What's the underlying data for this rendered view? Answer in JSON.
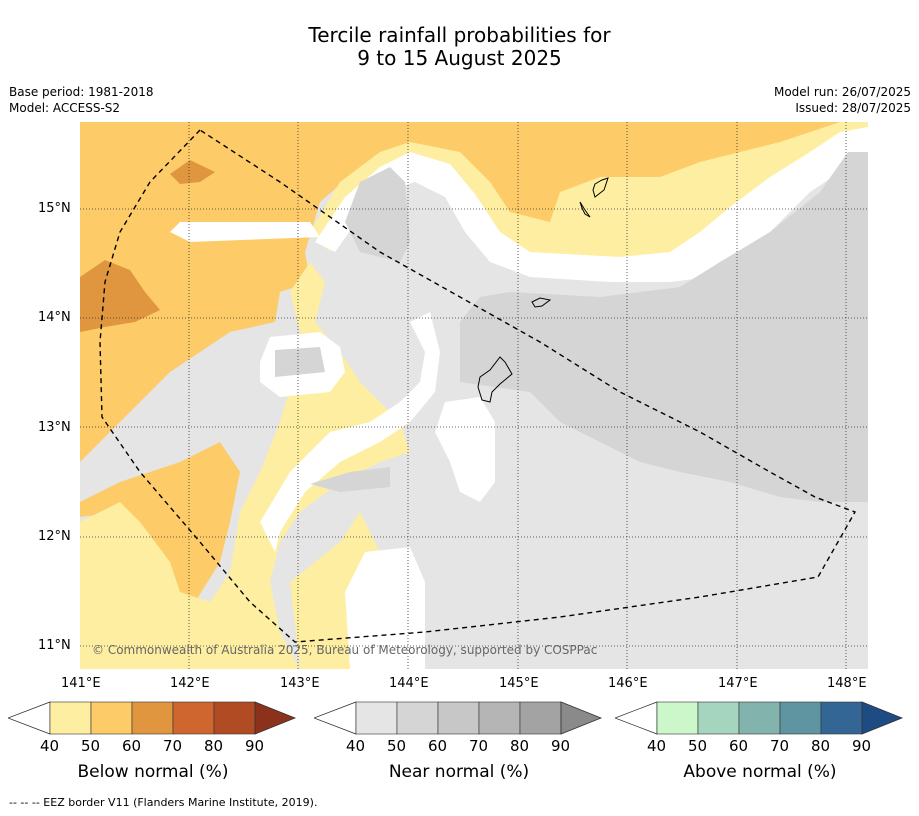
{
  "title": {
    "line1": "Tercile rainfall probabilities for",
    "line2": "9 to 15 August 2025"
  },
  "meta": {
    "base_period": "Base period: 1981-2018",
    "model": "Model: ACCESS-S2",
    "model_run": "Model run: 26/07/2025",
    "issued": "Issued: 28/07/2025"
  },
  "map": {
    "copyright": "© Commonwealth of Australia 2025, Bureau of Meteorology, supported by COSPPac",
    "lat_labels": [
      "15°N",
      "14°N",
      "13°N",
      "12°N",
      "11°N"
    ],
    "lon_labels": [
      "141°E",
      "142°E",
      "143°E",
      "144°E",
      "145°E",
      "146°E",
      "147°E",
      "148°E"
    ]
  },
  "colorbars": [
    {
      "title": "Below normal (%)",
      "ticks": [
        "40",
        "50",
        "60",
        "70",
        "80",
        "90"
      ],
      "colors": [
        "#fdeea1",
        "#fdcb67",
        "#e0963f",
        "#d0662f",
        "#b04b24",
        "#8c321c"
      ]
    },
    {
      "title": "Near normal (%)",
      "ticks": [
        "40",
        "50",
        "60",
        "70",
        "80",
        "90"
      ],
      "colors": [
        "#e5e5e5",
        "#d5d5d5",
        "#c7c7c7",
        "#b5b5b5",
        "#a3a3a3",
        "#8a8a8a"
      ]
    },
    {
      "title": "Above normal (%)",
      "ticks": [
        "40",
        "50",
        "60",
        "70",
        "80",
        "90"
      ],
      "colors": [
        "#cbf7cb",
        "#a5d5be",
        "#82b4ad",
        "#5e95a0",
        "#346695",
        "#1e4b82"
      ]
    }
  ],
  "footnote": "--  --  -- EEZ border V11 (Flanders Marine Institute, 2019)."
}
